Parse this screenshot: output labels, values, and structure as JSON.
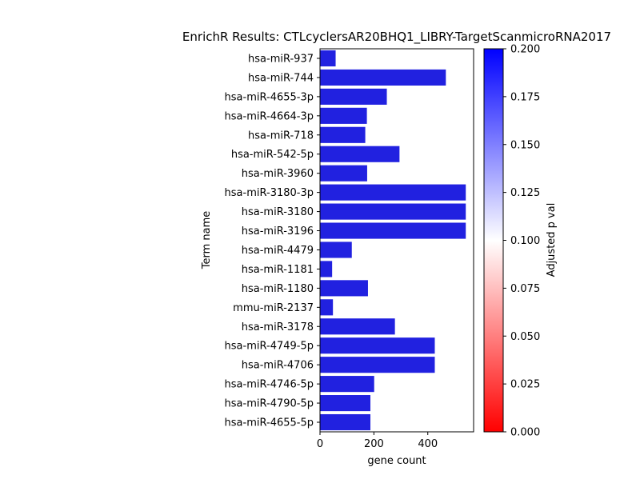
{
  "chart_data": {
    "type": "bar",
    "orientation": "horizontal",
    "title": "EnrichR Results: CTLcyclersAR20BHQ1_LIBRY-TargetScanmicroRNA2017",
    "xlabel": "gene count",
    "ylabel": "Term name",
    "xlim": [
      0,
      570
    ],
    "xticks": [
      "0",
      "200",
      "400"
    ],
    "xtick_values": [
      0,
      200,
      400
    ],
    "grid": false,
    "categories": [
      "hsa-miR-937",
      "hsa-miR-744",
      "hsa-miR-4655-3p",
      "hsa-miR-4664-3p",
      "hsa-miR-718",
      "hsa-miR-542-5p",
      "hsa-miR-3960",
      "hsa-miR-3180-3p",
      "hsa-miR-3180",
      "hsa-miR-3196",
      "hsa-miR-4479",
      "hsa-miR-1181",
      "hsa-miR-1180",
      "mmu-miR-2137",
      "hsa-miR-3178",
      "hsa-miR-4749-5p",
      "hsa-miR-4706",
      "hsa-miR-4746-5p",
      "hsa-miR-4790-5p",
      "hsa-miR-4655-5p"
    ],
    "values": [
      58,
      467,
      248,
      174,
      168,
      295,
      175,
      541,
      541,
      541,
      118,
      45,
      178,
      48,
      278,
      426,
      426,
      201,
      187,
      187
    ],
    "bar_color": "#2121e0",
    "colorbar": {
      "label": "Adjusted p val",
      "range": [
        0,
        0.2
      ],
      "ticks": [
        "0.000",
        "0.025",
        "0.050",
        "0.075",
        "0.100",
        "0.125",
        "0.150",
        "0.175",
        "0.200"
      ],
      "tick_values": [
        0,
        0.025,
        0.05,
        0.075,
        0.1,
        0.125,
        0.15,
        0.175,
        0.2
      ],
      "colors": [
        "#ff0000",
        "#ffffff",
        "#0000ff"
      ]
    }
  }
}
